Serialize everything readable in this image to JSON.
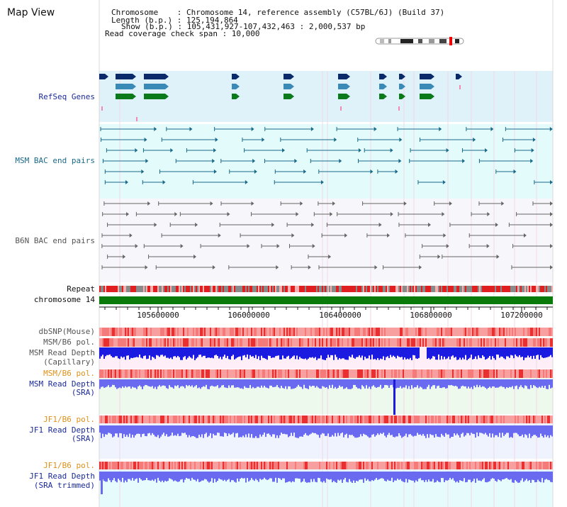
{
  "page_title": "Map View",
  "info": {
    "chromosome_line": "Chromosome    : Chromosome 14, reference assembly (C57BL/6J) (Build 37)",
    "length_line": "Length (b.p.) : 125,194,864",
    "show_line": "Show (b.p.) : 105,431,927-107,432,463 : 2,000,537 bp",
    "coverage_line": "Read coverage check span : 10,000"
  },
  "tracks": {
    "refseq": "RefSeq Genes",
    "msm_bac": "MSM BAC end pairs",
    "b6n_bac": "B6N BAC end pairs",
    "repeat": "Repeat",
    "chromosome": "chromosome 14",
    "dbsnp": "dbSNP(Mouse)",
    "msm_b6_pol_1": "MSM/B6 pol.",
    "msm_depth_cap_1": "MSM Read Depth",
    "msm_depth_cap_2": "(Capillary)",
    "msm_b6_pol_2": "MSM/B6 pol.",
    "msm_depth_sra_1": "MSM Read Depth",
    "msm_depth_sra_2": "(SRA)",
    "jf1_b6_pol_1": "JF1/B6 pol.",
    "jf1_depth_sra_1": "JF1 Read Depth",
    "jf1_depth_sra_2": "(SRA)",
    "jf1_b6_pol_2": "JF1/B6 pol.",
    "jf1_depth_trim_1": "JF1 Read Depth",
    "jf1_depth_trim_2": "(SRA trimmed)"
  },
  "axis": {
    "ticks": [
      "105600000",
      "106000000",
      "106400000",
      "106800000",
      "107200000"
    ]
  },
  "colors": {
    "navy": "#1a2a9a",
    "teal": "#1a6a8a",
    "gene_dark": "#0a2a6a",
    "gene_mid": "#3a8ab8",
    "gene_green": "#0a7a1a",
    "repeat_red": "#e02020",
    "chrom_green": "#0a7a0a",
    "depth_blue": "#1a1ae0",
    "depth_light": "#6a6af0",
    "snp_pink": "#f8a0a0",
    "snp_red": "#e83030"
  }
}
